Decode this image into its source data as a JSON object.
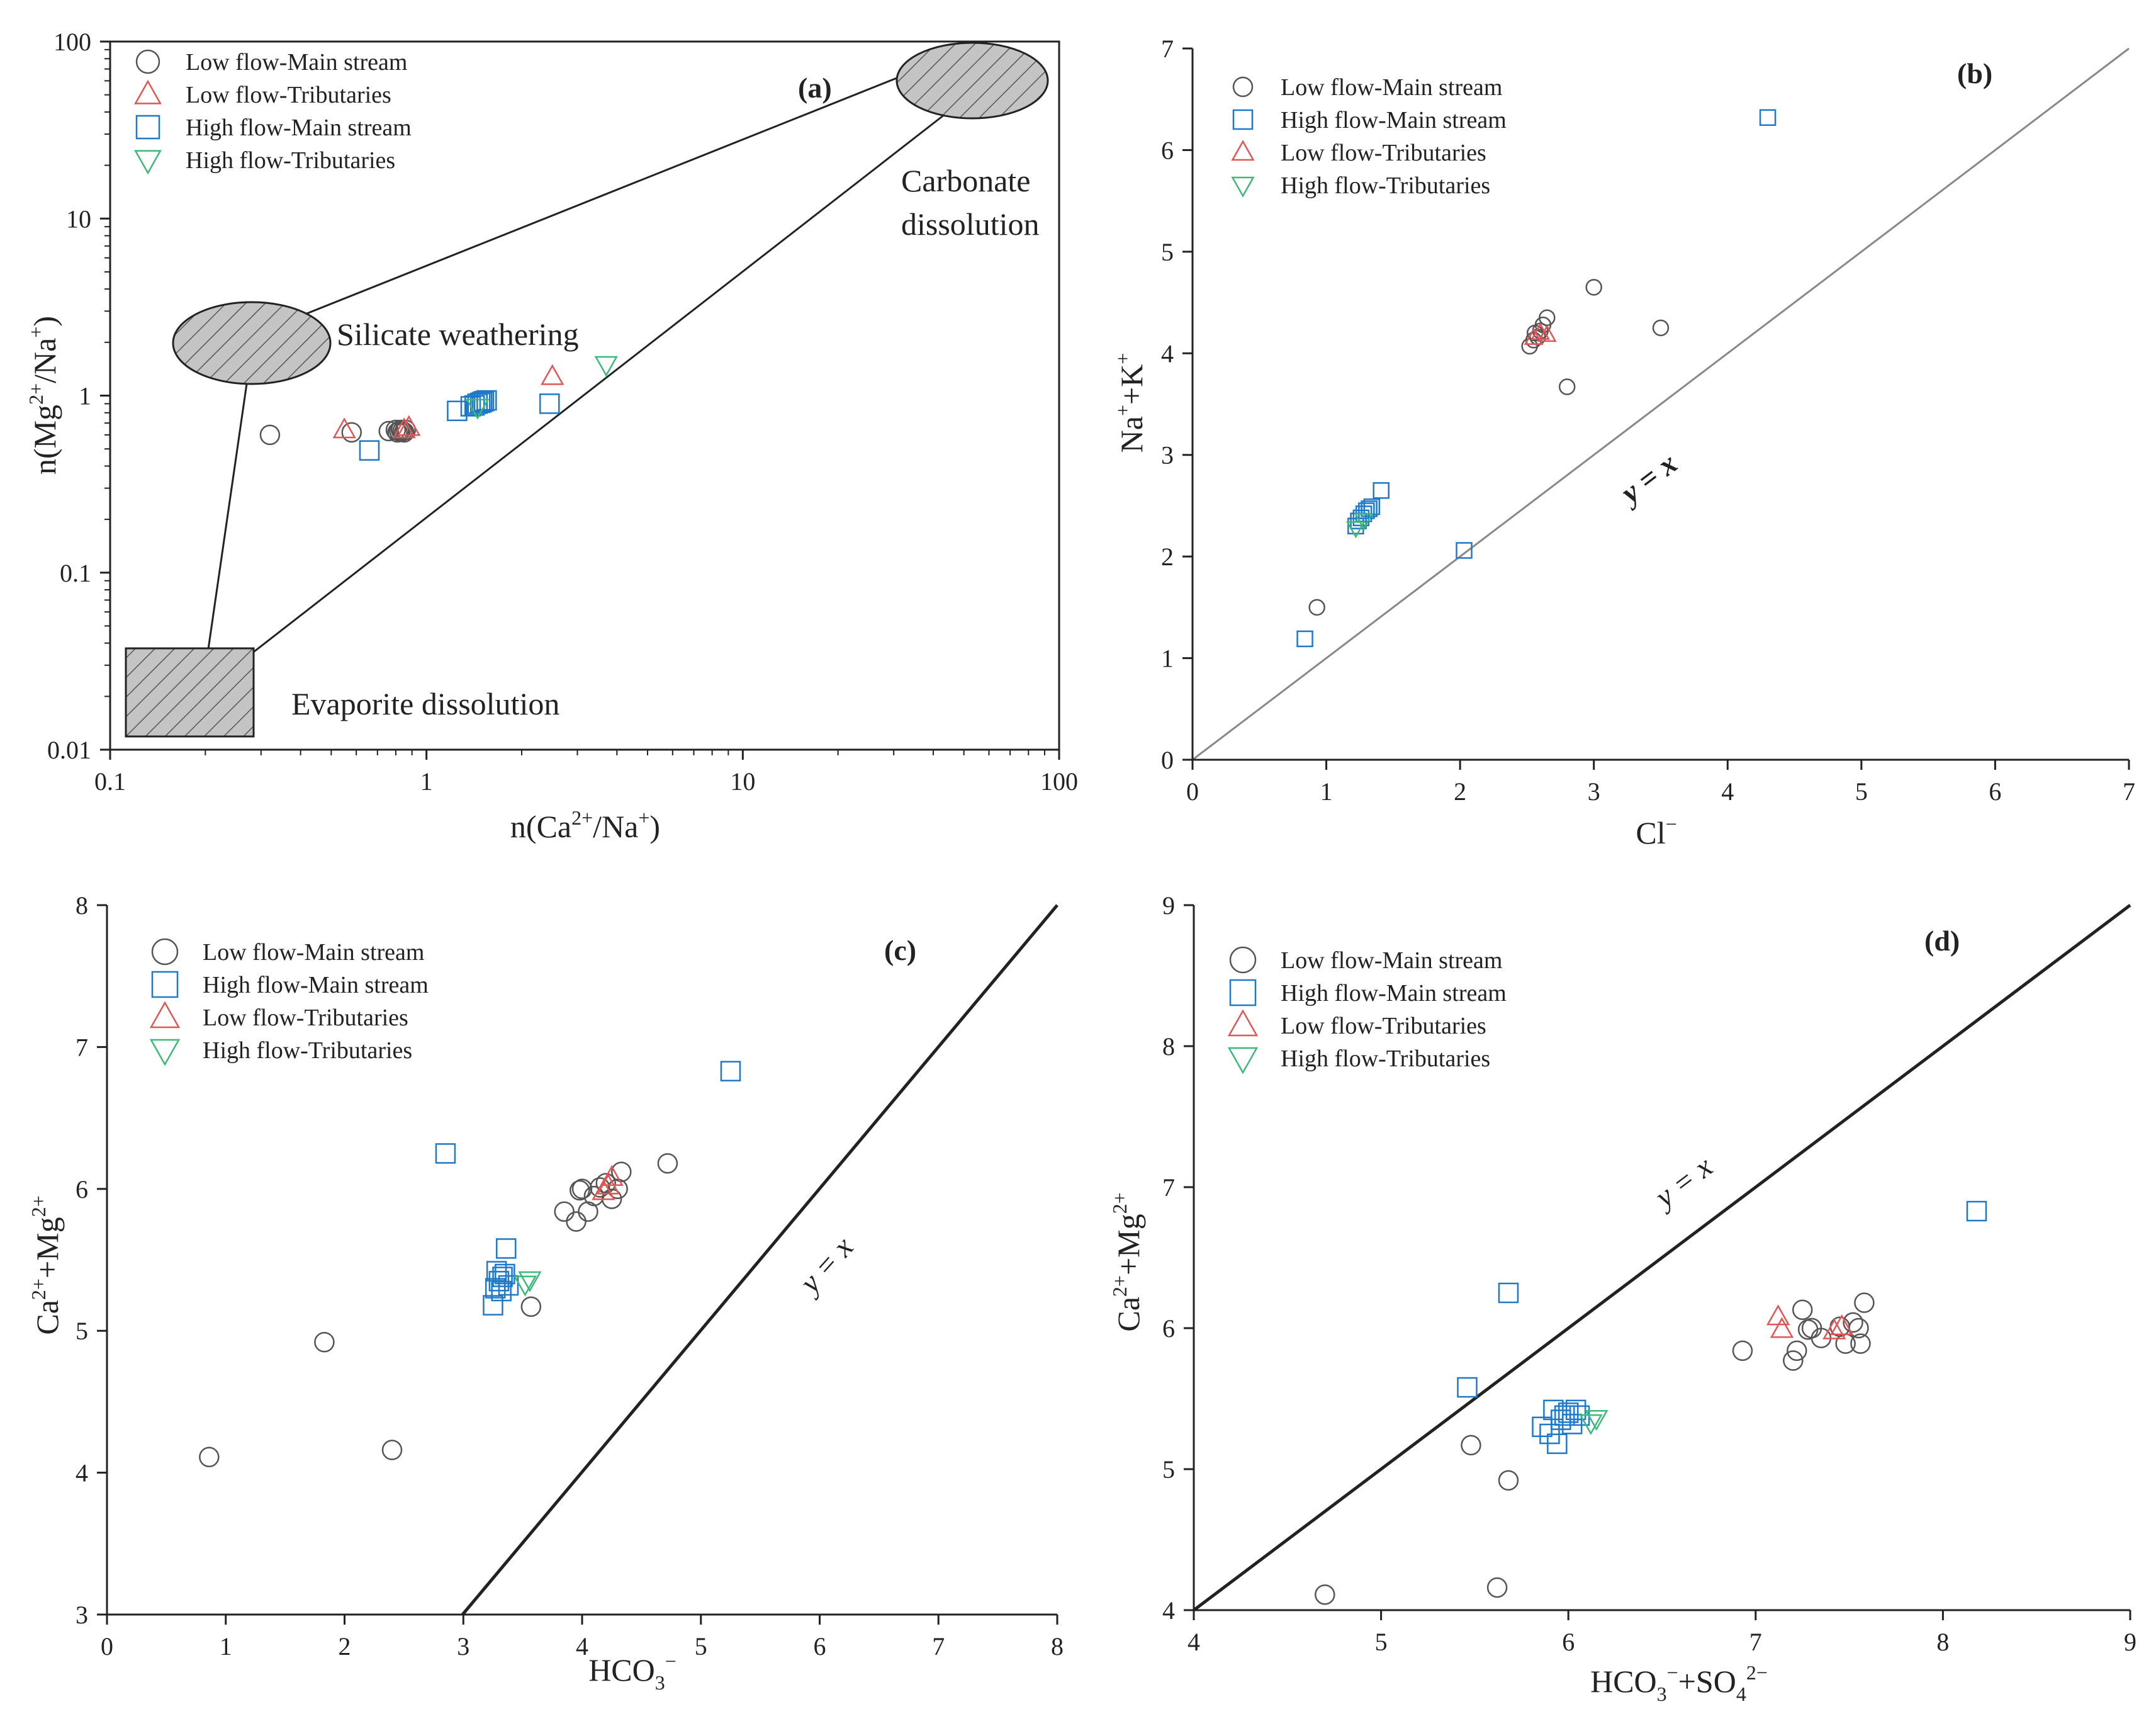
{
  "colors": {
    "low_main": "#555555",
    "low_trib": "#e05555",
    "high_main": "#1f78c8",
    "high_trib": "#3cb879",
    "axis": "#222222",
    "hatch_fill": "#c4c4c4",
    "line": "#888888"
  },
  "chart_data": [
    {
      "id": "a",
      "type": "scatter",
      "panel_label": "(a)",
      "scale": "log",
      "xlabel": "n(Ca2+/Na+)",
      "ylabel": "n(Mg2+/Na+)",
      "xlim": [
        0.1,
        100
      ],
      "ylim": [
        0.01,
        100
      ],
      "x_ticks": [
        "0.1",
        "1",
        "10",
        "100"
      ],
      "y_ticks": [
        "0.01",
        "0.1",
        "1",
        "10",
        "100"
      ],
      "legend": [
        "Low flow-Main stream",
        "Low flow-Tributaries",
        "High flow-Main stream",
        "High flow-Tributaries"
      ],
      "regions": {
        "silicate": "Silicate weathering",
        "carbonate_1": "Carbonate",
        "carbonate_2": "dissolution",
        "evaporite": "Evaporite dissolution"
      },
      "series": [
        {
          "name": "Low flow-Main stream",
          "marker": "circle",
          "x": [
            0.32,
            0.58,
            0.76,
            0.8,
            0.81,
            0.82,
            0.83,
            0.84,
            0.85,
            0.86
          ],
          "y": [
            0.6,
            0.62,
            0.63,
            0.64,
            0.62,
            0.63,
            0.64,
            0.63,
            0.62,
            0.64
          ]
        },
        {
          "name": "Low flow-Tributaries",
          "marker": "triangle-up",
          "x": [
            0.55,
            0.85,
            0.88,
            2.5
          ],
          "y": [
            0.64,
            0.64,
            0.66,
            1.28
          ]
        },
        {
          "name": "High flow-Main stream",
          "marker": "square",
          "x": [
            0.66,
            1.25,
            1.38,
            1.42,
            1.45,
            1.48,
            1.5,
            1.52,
            1.55,
            2.45
          ],
          "y": [
            0.49,
            0.82,
            0.87,
            0.88,
            0.9,
            0.91,
            0.92,
            0.93,
            0.94,
            0.9
          ]
        },
        {
          "name": "High flow-Tributaries",
          "marker": "triangle-down",
          "x": [
            1.45,
            3.7
          ],
          "y": [
            0.86,
            1.5
          ]
        }
      ]
    },
    {
      "id": "b",
      "type": "scatter",
      "panel_label": "(b)",
      "xlabel": "Cl−",
      "ylabel": "Na++K+",
      "xlim": [
        0,
        7
      ],
      "ylim": [
        0,
        7
      ],
      "x_ticks": [
        "0",
        "1",
        "2",
        "3",
        "4",
        "5",
        "6",
        "7"
      ],
      "y_ticks": [
        "0",
        "1",
        "2",
        "3",
        "4",
        "5",
        "6",
        "7"
      ],
      "line_label": "y = x",
      "legend": [
        "Low flow-Main stream",
        "High flow-Main stream",
        "Low flow-Tributaries",
        "High flow-Tributaries"
      ],
      "series": [
        {
          "name": "Low flow-Main stream",
          "marker": "circle",
          "x": [
            0.93,
            2.52,
            2.55,
            2.56,
            2.58,
            2.6,
            2.62,
            2.65,
            2.8,
            3.0,
            3.5
          ],
          "y": [
            1.5,
            4.07,
            4.13,
            4.2,
            4.16,
            4.22,
            4.28,
            4.35,
            3.67,
            4.65,
            4.25
          ]
        },
        {
          "name": "High flow-Main stream",
          "marker": "square",
          "x": [
            0.84,
            1.22,
            1.24,
            1.26,
            1.28,
            1.3,
            1.32,
            1.34,
            1.41,
            2.03,
            4.3
          ],
          "y": [
            1.19,
            2.3,
            2.35,
            2.38,
            2.42,
            2.45,
            2.47,
            2.49,
            2.65,
            2.06,
            6.32
          ]
        },
        {
          "name": "Low flow-Tributaries",
          "marker": "triangle-up",
          "x": [
            2.55,
            2.6,
            2.65
          ],
          "y": [
            4.15,
            4.2,
            4.18
          ]
        },
        {
          "name": "High flow-Tributaries",
          "marker": "triangle-down",
          "x": [
            1.22,
            1.28
          ],
          "y": [
            2.28,
            2.36
          ]
        }
      ]
    },
    {
      "id": "c",
      "type": "scatter",
      "panel_label": "(c)",
      "xlabel": "HCO3−",
      "ylabel": "Ca2++Mg2+",
      "xlim": [
        0,
        8
      ],
      "ylim": [
        3,
        8
      ],
      "x_ticks": [
        "0",
        "1",
        "2",
        "3",
        "4",
        "5",
        "6",
        "7",
        "8"
      ],
      "y_ticks": [
        "3",
        "4",
        "5",
        "6",
        "7",
        "8"
      ],
      "line_label": "y = x",
      "legend": [
        "Low flow-Main stream",
        "High flow-Main stream",
        "Low flow-Tributaries",
        "High flow-Tributaries"
      ],
      "series": [
        {
          "name": "Low flow-Main stream",
          "marker": "circle",
          "x": [
            0.86,
            1.83,
            2.4,
            3.57,
            3.85,
            3.95,
            3.98,
            4.0,
            4.05,
            4.1,
            4.15,
            4.2,
            4.25,
            4.3,
            4.33,
            4.72
          ],
          "y": [
            4.11,
            4.92,
            4.16,
            5.17,
            5.84,
            5.77,
            5.99,
            6.0,
            5.84,
            5.95,
            6.01,
            6.04,
            5.93,
            6.0,
            6.12,
            6.18
          ]
        },
        {
          "name": "High flow-Main stream",
          "marker": "square",
          "x": [
            2.85,
            3.25,
            3.27,
            3.28,
            3.3,
            3.32,
            3.33,
            3.35,
            3.36,
            3.38,
            5.25
          ],
          "y": [
            6.25,
            5.18,
            5.3,
            5.42,
            5.35,
            5.28,
            5.38,
            5.4,
            5.58,
            5.32,
            6.83
          ]
        },
        {
          "name": "Low flow-Tributaries",
          "marker": "triangle-up",
          "x": [
            4.18,
            4.22,
            4.25
          ],
          "y": [
            5.98,
            6.02,
            6.08
          ]
        },
        {
          "name": "High flow-Tributaries",
          "marker": "triangle-down",
          "x": [
            3.52,
            3.56
          ],
          "y": [
            5.33,
            5.36
          ]
        }
      ]
    },
    {
      "id": "d",
      "type": "scatter",
      "panel_label": "(d)",
      "xlabel": "HCO3−+SO42−",
      "ylabel": "Ca2++Mg2+",
      "xlim": [
        4,
        9
      ],
      "ylim": [
        4,
        9
      ],
      "x_ticks": [
        "4",
        "5",
        "6",
        "7",
        "8",
        "9"
      ],
      "y_ticks": [
        "4",
        "5",
        "6",
        "7",
        "8",
        "9"
      ],
      "line_label": "y = x",
      "legend": [
        "Low flow-Main stream",
        "High flow-Main stream",
        "Low flow-Tributaries",
        "High flow-Tributaries"
      ],
      "series": [
        {
          "name": "Low flow-Main stream",
          "marker": "circle",
          "x": [
            4.7,
            5.48,
            5.62,
            5.68,
            6.93,
            7.2,
            7.22,
            7.25,
            7.28,
            7.3,
            7.35,
            7.45,
            7.48,
            7.52,
            7.55,
            7.56,
            7.58
          ],
          "y": [
            4.11,
            5.17,
            4.16,
            4.92,
            5.84,
            5.77,
            5.84,
            6.13,
            5.99,
            6.0,
            5.93,
            6.01,
            5.89,
            6.04,
            6.0,
            5.89,
            6.18
          ]
        },
        {
          "name": "High flow-Main stream",
          "marker": "square",
          "x": [
            5.46,
            5.68,
            5.86,
            5.9,
            5.92,
            5.94,
            5.96,
            5.98,
            6.0,
            6.02,
            6.04,
            6.06,
            8.18
          ],
          "y": [
            5.58,
            6.25,
            5.3,
            5.25,
            5.42,
            5.18,
            5.35,
            5.38,
            5.4,
            5.32,
            5.42,
            5.38,
            6.83
          ]
        },
        {
          "name": "Low flow-Tributaries",
          "marker": "triangle-up",
          "x": [
            7.12,
            7.14,
            7.42,
            7.46
          ],
          "y": [
            6.08,
            5.99,
            5.98,
            6.01
          ]
        },
        {
          "name": "High flow-Tributaries",
          "marker": "triangle-down",
          "x": [
            6.12,
            6.15
          ],
          "y": [
            5.33,
            5.36
          ]
        }
      ]
    }
  ]
}
